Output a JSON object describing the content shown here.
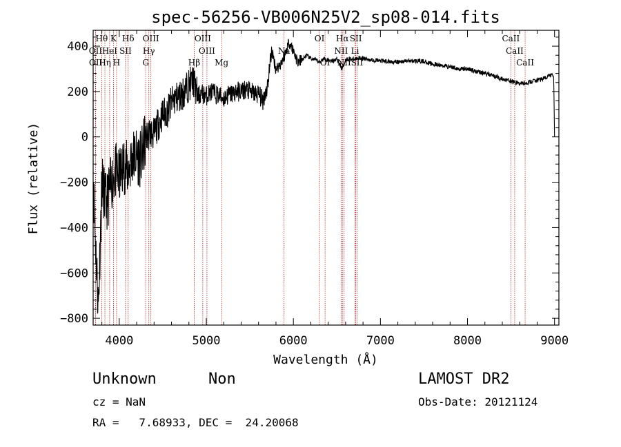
{
  "chart_data": {
    "type": "line",
    "title": "spec-56256-VB006N25V2_sp08-014.fits",
    "xlabel": "Wavelength (Å)",
    "ylabel": "Flux (relative)",
    "xlim": [
      3700,
      9050
    ],
    "ylim": [
      -830,
      470
    ],
    "xticks": [
      4000,
      5000,
      6000,
      7000,
      8000,
      9000
    ],
    "yticks": [
      -800,
      -600,
      -400,
      -200,
      0,
      200,
      400
    ],
    "grid": false,
    "series_color": "#000000",
    "marker_color": "#b22222",
    "spectrum_anchors": [
      [
        3700,
        -150
      ],
      [
        3720,
        -400
      ],
      [
        3760,
        -750
      ],
      [
        3800,
        -200
      ],
      [
        3850,
        -300
      ],
      [
        3900,
        -220
      ],
      [
        3950,
        -150
      ],
      [
        4000,
        -180
      ],
      [
        4050,
        -120
      ],
      [
        4100,
        -150
      ],
      [
        4150,
        -90
      ],
      [
        4200,
        -80
      ],
      [
        4250,
        -100
      ],
      [
        4300,
        -10
      ],
      [
        4350,
        20
      ],
      [
        4400,
        10
      ],
      [
        4450,
        60
      ],
      [
        4500,
        100
      ],
      [
        4550,
        110
      ],
      [
        4600,
        150
      ],
      [
        4650,
        170
      ],
      [
        4700,
        180
      ],
      [
        4750,
        200
      ],
      [
        4800,
        230
      ],
      [
        4850,
        250
      ],
      [
        4900,
        180
      ],
      [
        4950,
        190
      ],
      [
        5000,
        180
      ],
      [
        5050,
        200
      ],
      [
        5100,
        190
      ],
      [
        5150,
        180
      ],
      [
        5200,
        170
      ],
      [
        5250,
        185
      ],
      [
        5300,
        190
      ],
      [
        5350,
        200
      ],
      [
        5400,
        200
      ],
      [
        5450,
        210
      ],
      [
        5500,
        200
      ],
      [
        5550,
        190
      ],
      [
        5600,
        190
      ],
      [
        5650,
        160
      ],
      [
        5700,
        220
      ],
      [
        5750,
        380
      ],
      [
        5800,
        300
      ],
      [
        5850,
        320
      ],
      [
        5900,
        360
      ],
      [
        5950,
        420
      ],
      [
        6000,
        380
      ],
      [
        6050,
        330
      ],
      [
        6100,
        340
      ],
      [
        6150,
        360
      ],
      [
        6200,
        345
      ],
      [
        6250,
        340
      ],
      [
        6300,
        330
      ],
      [
        6350,
        345
      ],
      [
        6400,
        340
      ],
      [
        6450,
        335
      ],
      [
        6500,
        345
      ],
      [
        6560,
        300
      ],
      [
        6600,
        340
      ],
      [
        6650,
        345
      ],
      [
        6700,
        340
      ],
      [
        6750,
        350
      ],
      [
        6800,
        345
      ],
      [
        6900,
        340
      ],
      [
        7000,
        335
      ],
      [
        7100,
        332
      ],
      [
        7200,
        330
      ],
      [
        7300,
        335
      ],
      [
        7400,
        335
      ],
      [
        7500,
        333
      ],
      [
        7600,
        320
      ],
      [
        7700,
        315
      ],
      [
        7800,
        310
      ],
      [
        7900,
        300
      ],
      [
        8000,
        300
      ],
      [
        8100,
        290
      ],
      [
        8200,
        280
      ],
      [
        8300,
        270
      ],
      [
        8400,
        255
      ],
      [
        8500,
        245
      ],
      [
        8600,
        235
      ],
      [
        8700,
        240
      ],
      [
        8800,
        250
      ],
      [
        8900,
        260
      ],
      [
        8960,
        275
      ],
      [
        8990,
        265
      ],
      [
        9000,
        0
      ]
    ],
    "spectral_lines": [
      {
        "name": "Hθ",
        "x": 3798,
        "row": 0
      },
      {
        "name": "K",
        "x": 3934,
        "row": 0
      },
      {
        "name": "Hδ",
        "x": 4102,
        "row": 0
      },
      {
        "name": "OIII",
        "x": 4363,
        "row": 0
      },
      {
        "name": "OIII",
        "x": 4959,
        "row": 0
      },
      {
        "name": "OI",
        "x": 6300,
        "row": 0
      },
      {
        "name": "Hα",
        "x": 6563,
        "row": 0
      },
      {
        "name": "SII",
        "x": 6717,
        "row": 0
      },
      {
        "name": "CaII",
        "x": 8498,
        "row": 0
      },
      {
        "name": "OII",
        "x": 3727,
        "row": 1
      },
      {
        "name": "HeI",
        "x": 3889,
        "row": 1
      },
      {
        "name": "SII",
        "x": 4072,
        "row": 1
      },
      {
        "name": "Hγ",
        "x": 4340,
        "row": 1
      },
      {
        "name": "OIII",
        "x": 5007,
        "row": 1
      },
      {
        "name": "Na",
        "x": 5893,
        "row": 1
      },
      {
        "name": "NII",
        "x": 6548,
        "row": 1
      },
      {
        "name": "Li",
        "x": 6708,
        "row": 1
      },
      {
        "name": "CaII",
        "x": 8542,
        "row": 1
      },
      {
        "name": "OII",
        "x": 3729,
        "row": 2
      },
      {
        "name": "Hη",
        "x": 3835,
        "row": 2
      },
      {
        "name": "H",
        "x": 3969,
        "row": 2
      },
      {
        "name": "G",
        "x": 4304,
        "row": 2
      },
      {
        "name": "Hβ",
        "x": 4861,
        "row": 2
      },
      {
        "name": "Mg",
        "x": 5175,
        "row": 2
      },
      {
        "name": "OI",
        "x": 6364,
        "row": 2
      },
      {
        "name": "NII",
        "x": 6583,
        "row": 2
      },
      {
        "name": "SII",
        "x": 6731,
        "row": 2
      },
      {
        "name": "CaII",
        "x": 8662,
        "row": 2
      }
    ]
  },
  "info": {
    "object_class": "Unknown",
    "subclass": "Non",
    "survey": "LAMOST DR2",
    "redshift": "cz = NaN",
    "obs_date": "Obs-Date: 20121124",
    "coordinates": "RA =   7.68933, DEC =  24.20068"
  }
}
